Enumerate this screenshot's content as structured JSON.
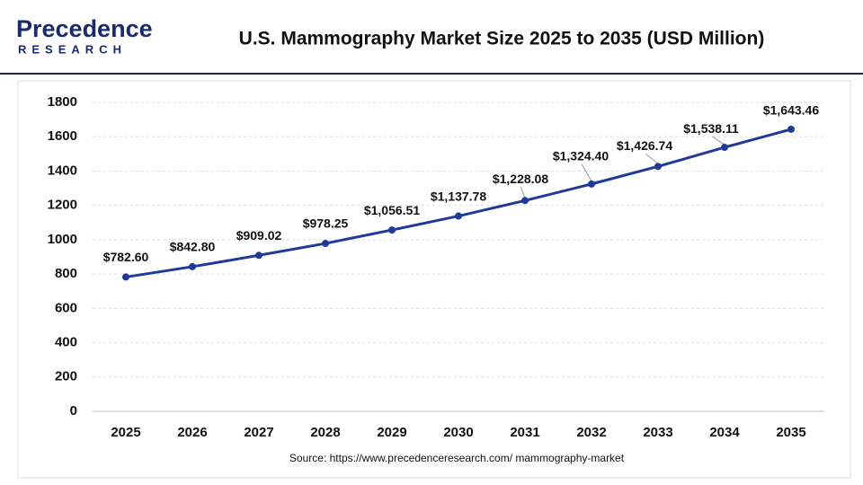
{
  "logo": {
    "name": "Precedence",
    "tagline": "RESEARCH"
  },
  "chart_data": {
    "type": "line",
    "title": "U.S. Mammography Market Size 2025 to 2035 (USD Million)",
    "categories": [
      "2025",
      "2026",
      "2027",
      "2028",
      "2029",
      "2030",
      "2031",
      "2032",
      "2033",
      "2034",
      "2035"
    ],
    "series": [
      {
        "name": "U.S. Mammography Market Size",
        "color": "#1f3b97",
        "values": [
          782.6,
          842.8,
          909.02,
          978.25,
          1056.51,
          1137.78,
          1228.08,
          1324.4,
          1426.74,
          1538.11,
          1643.46
        ],
        "value_labels": [
          "$782.60",
          "$842.80",
          "$909.02",
          "$978.25",
          "$1,056.51",
          "$1,137.78",
          "$1,228.08",
          "$1,324.40",
          "$1,426.74",
          "$1,538.11",
          "$1,643.46"
        ]
      }
    ],
    "ylim": [
      0,
      1800
    ],
    "yticks": [
      0,
      200,
      400,
      600,
      800,
      1000,
      1200,
      1400,
      1600,
      1800
    ],
    "grid": true,
    "source": "Source: https://www.precedenceresearch.com/ mammography-market"
  }
}
